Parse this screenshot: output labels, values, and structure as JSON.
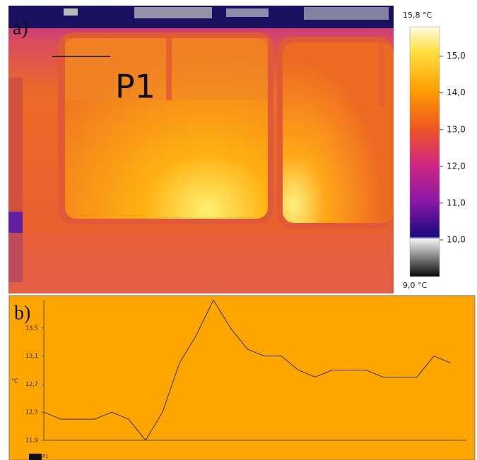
{
  "chart_data": [
    {
      "type": "image",
      "label": "a)",
      "annotation": "P1",
      "colorbar": {
        "lim": [
          9.0,
          15.8
        ],
        "max_label": "15,8 °C",
        "min_label": "9,0 °C",
        "ticks": [
          {
            "value": 15.0,
            "label": "15,0"
          },
          {
            "value": 14.0,
            "label": "14,0"
          },
          {
            "value": 13.0,
            "label": "13,0"
          },
          {
            "value": 12.0,
            "label": "12,0"
          },
          {
            "value": 11.0,
            "label": "11,0"
          },
          {
            "value": 10.0,
            "label": "10,0"
          }
        ]
      }
    },
    {
      "type": "line",
      "label": "b)",
      "ylabel": "°C",
      "categories": [
        null,
        null,
        null,
        null,
        null,
        null,
        null,
        null,
        null,
        null,
        null,
        null,
        null,
        null,
        null,
        null,
        null,
        null,
        null,
        null,
        null,
        null,
        null,
        null,
        null
      ],
      "series": [
        {
          "name": "P1",
          "color": "#333333",
          "values": [
            12.3,
            12.2,
            12.2,
            12.2,
            12.3,
            12.2,
            11.9,
            12.3,
            13.0,
            13.4,
            13.9,
            13.5,
            13.2,
            13.1,
            13.1,
            12.9,
            12.8,
            12.9,
            12.9,
            12.9,
            12.8,
            12.8,
            12.8,
            13.1,
            13.0
          ]
        }
      ],
      "ylim": [
        11.9,
        13.9
      ],
      "yticks": [
        {
          "value": 11.9,
          "label": "11,9"
        },
        {
          "value": 12.3,
          "label": "12,3"
        },
        {
          "value": 12.7,
          "label": "12,7"
        },
        {
          "value": 13.1,
          "label": "13,1"
        },
        {
          "value": 13.5,
          "label": "13,5"
        }
      ]
    }
  ]
}
